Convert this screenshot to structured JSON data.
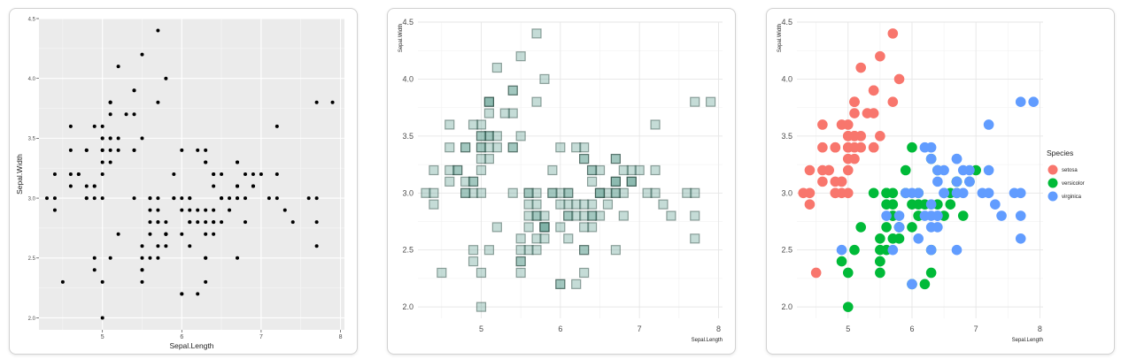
{
  "chart_data": [
    {
      "type": "scatter",
      "theme": "grey panel with white grid",
      "xlabel": "Sepal.Length",
      "ylabel": "Sepal.Width",
      "xlim": [
        4.2,
        8.05
      ],
      "ylim": [
        1.9,
        4.5
      ],
      "x_ticks": [
        "5",
        "6",
        "7",
        "8"
      ],
      "y_ticks": [
        "2.0",
        "2.5",
        "3.0",
        "3.5",
        "4.0",
        "4.5"
      ],
      "point_shape": "small circle",
      "point_color": "#000000"
    },
    {
      "type": "scatter",
      "theme": "minimal, white background, light grid",
      "xlabel": "Sepal.Length",
      "ylabel": "Sepal.Width",
      "xlim": [
        4.2,
        8.05
      ],
      "ylim": [
        1.9,
        4.5
      ],
      "x_ticks": [
        "5",
        "6",
        "7",
        "8"
      ],
      "y_ticks": [
        "2.0",
        "2.5",
        "3.0",
        "3.5",
        "4.0",
        "4.5"
      ],
      "point_shape": "square, semi-transparent",
      "point_fill": "#6fa89a",
      "point_stroke": "#1f3d36"
    },
    {
      "type": "scatter",
      "theme": "minimal, white background, light grid",
      "xlabel": "Sepal.Length",
      "ylabel": "Sepal.Width",
      "xlim": [
        4.2,
        8.05
      ],
      "ylim": [
        1.9,
        4.5
      ],
      "x_ticks": [
        "5",
        "6",
        "7",
        "8"
      ],
      "y_ticks": [
        "2.0",
        "2.5",
        "3.0",
        "3.5",
        "4.0",
        "4.5"
      ],
      "point_shape": "large circle",
      "legend": {
        "title": "Species",
        "placement": "right"
      },
      "series": [
        {
          "name": "setosa",
          "color": "#f8766d"
        },
        {
          "name": "versicolor",
          "color": "#00ba38"
        },
        {
          "name": "virginica",
          "color": "#619cff"
        }
      ]
    }
  ],
  "iris": {
    "setosa": [
      [
        5.1,
        3.5
      ],
      [
        4.9,
        3.0
      ],
      [
        4.7,
        3.2
      ],
      [
        4.6,
        3.1
      ],
      [
        5.0,
        3.6
      ],
      [
        5.4,
        3.9
      ],
      [
        4.6,
        3.4
      ],
      [
        5.0,
        3.4
      ],
      [
        4.4,
        2.9
      ],
      [
        4.9,
        3.1
      ],
      [
        5.4,
        3.7
      ],
      [
        4.8,
        3.4
      ],
      [
        4.8,
        3.0
      ],
      [
        4.3,
        3.0
      ],
      [
        5.8,
        4.0
      ],
      [
        5.7,
        4.4
      ],
      [
        5.4,
        3.9
      ],
      [
        5.1,
        3.5
      ],
      [
        5.7,
        3.8
      ],
      [
        5.1,
        3.8
      ],
      [
        5.4,
        3.4
      ],
      [
        5.1,
        3.7
      ],
      [
        4.6,
        3.6
      ],
      [
        5.1,
        3.3
      ],
      [
        4.8,
        3.4
      ],
      [
        5.0,
        3.0
      ],
      [
        5.0,
        3.4
      ],
      [
        5.2,
        3.5
      ],
      [
        5.2,
        3.4
      ],
      [
        4.7,
        3.2
      ],
      [
        4.8,
        3.1
      ],
      [
        5.4,
        3.4
      ],
      [
        5.2,
        4.1
      ],
      [
        5.5,
        4.2
      ],
      [
        4.9,
        3.1
      ],
      [
        5.0,
        3.2
      ],
      [
        5.5,
        3.5
      ],
      [
        4.9,
        3.6
      ],
      [
        4.4,
        3.0
      ],
      [
        5.1,
        3.4
      ],
      [
        5.0,
        3.5
      ],
      [
        4.5,
        2.3
      ],
      [
        4.4,
        3.2
      ],
      [
        5.0,
        3.5
      ],
      [
        5.1,
        3.8
      ],
      [
        4.8,
        3.0
      ],
      [
        5.1,
        3.8
      ],
      [
        4.6,
        3.2
      ],
      [
        5.3,
        3.7
      ],
      [
        5.0,
        3.3
      ]
    ],
    "versicolor": [
      [
        7.0,
        3.2
      ],
      [
        6.4,
        3.2
      ],
      [
        6.9,
        3.1
      ],
      [
        5.5,
        2.3
      ],
      [
        6.5,
        2.8
      ],
      [
        5.7,
        2.8
      ],
      [
        6.3,
        3.3
      ],
      [
        4.9,
        2.4
      ],
      [
        6.6,
        2.9
      ],
      [
        5.2,
        2.7
      ],
      [
        5.0,
        2.0
      ],
      [
        5.9,
        3.0
      ],
      [
        6.0,
        2.2
      ],
      [
        6.1,
        2.9
      ],
      [
        5.6,
        2.9
      ],
      [
        6.7,
        3.1
      ],
      [
        5.6,
        3.0
      ],
      [
        5.8,
        2.7
      ],
      [
        6.2,
        2.2
      ],
      [
        5.6,
        2.5
      ],
      [
        5.9,
        3.2
      ],
      [
        6.1,
        2.8
      ],
      [
        6.3,
        2.5
      ],
      [
        6.1,
        2.8
      ],
      [
        6.4,
        2.9
      ],
      [
        6.6,
        3.0
      ],
      [
        6.8,
        2.8
      ],
      [
        6.7,
        3.0
      ],
      [
        6.0,
        2.9
      ],
      [
        5.7,
        2.6
      ],
      [
        5.5,
        2.4
      ],
      [
        5.5,
        2.4
      ],
      [
        5.8,
        2.7
      ],
      [
        6.0,
        2.7
      ],
      [
        5.4,
        3.0
      ],
      [
        6.0,
        3.4
      ],
      [
        6.7,
        3.1
      ],
      [
        6.3,
        2.3
      ],
      [
        5.6,
        3.0
      ],
      [
        5.5,
        2.5
      ],
      [
        5.5,
        2.6
      ],
      [
        6.1,
        3.0
      ],
      [
        5.8,
        2.6
      ],
      [
        5.0,
        2.3
      ],
      [
        5.6,
        2.7
      ],
      [
        5.7,
        3.0
      ],
      [
        5.7,
        2.9
      ],
      [
        6.2,
        2.9
      ],
      [
        5.1,
        2.5
      ],
      [
        5.7,
        2.8
      ]
    ],
    "virginica": [
      [
        6.3,
        3.3
      ],
      [
        5.8,
        2.7
      ],
      [
        7.1,
        3.0
      ],
      [
        6.3,
        2.9
      ],
      [
        6.5,
        3.0
      ],
      [
        7.6,
        3.0
      ],
      [
        4.9,
        2.5
      ],
      [
        7.3,
        2.9
      ],
      [
        6.7,
        2.5
      ],
      [
        7.2,
        3.6
      ],
      [
        6.5,
        3.2
      ],
      [
        6.4,
        2.7
      ],
      [
        6.8,
        3.0
      ],
      [
        5.7,
        2.5
      ],
      [
        5.8,
        2.8
      ],
      [
        6.4,
        3.2
      ],
      [
        6.5,
        3.0
      ],
      [
        7.7,
        3.8
      ],
      [
        7.7,
        2.6
      ],
      [
        6.0,
        2.2
      ],
      [
        6.9,
        3.2
      ],
      [
        5.6,
        2.8
      ],
      [
        7.7,
        2.8
      ],
      [
        6.3,
        2.7
      ],
      [
        6.7,
        3.3
      ],
      [
        7.2,
        3.2
      ],
      [
        6.2,
        2.8
      ],
      [
        6.1,
        3.0
      ],
      [
        6.4,
        2.8
      ],
      [
        7.2,
        3.0
      ],
      [
        7.4,
        2.8
      ],
      [
        7.9,
        3.8
      ],
      [
        6.4,
        2.8
      ],
      [
        6.3,
        2.8
      ],
      [
        6.1,
        2.6
      ],
      [
        7.7,
        3.0
      ],
      [
        6.3,
        3.4
      ],
      [
        6.4,
        3.1
      ],
      [
        6.0,
        3.0
      ],
      [
        6.9,
        3.1
      ],
      [
        6.7,
        3.1
      ],
      [
        6.9,
        3.1
      ],
      [
        5.8,
        2.7
      ],
      [
        6.8,
        3.2
      ],
      [
        6.7,
        3.3
      ],
      [
        6.7,
        3.0
      ],
      [
        6.3,
        2.5
      ],
      [
        6.5,
        3.0
      ],
      [
        6.2,
        3.4
      ],
      [
        5.9,
        3.0
      ]
    ]
  }
}
